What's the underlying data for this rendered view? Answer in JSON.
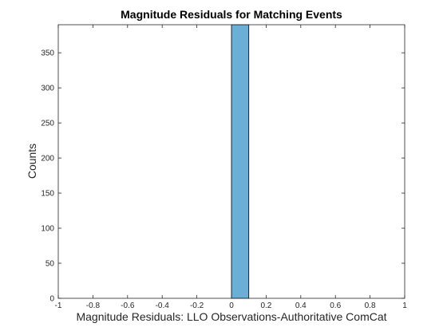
{
  "chart_data": {
    "type": "bar",
    "title": "Magnitude Residuals for Matching Events",
    "xlabel": "Magnitude Residuals: LLO Observations-Authoritative ComCat",
    "ylabel": "Counts",
    "xlim": [
      -1,
      1
    ],
    "ylim": [
      0,
      390
    ],
    "xticks": [
      -1,
      -0.8,
      -0.6,
      -0.4,
      -0.2,
      0,
      0.2,
      0.4,
      0.6,
      0.8,
      1
    ],
    "xtick_labels": [
      "-1",
      "-0.8",
      "-0.6",
      "-0.4",
      "-0.2",
      "0",
      "0.2",
      "0.4",
      "0.6",
      "0.8",
      "1"
    ],
    "yticks": [
      0,
      50,
      100,
      150,
      200,
      250,
      300,
      350
    ],
    "ytick_labels": [
      "0",
      "50",
      "100",
      "150",
      "200",
      "250",
      "300",
      "350"
    ],
    "grid": false,
    "bins": [
      {
        "x0": 0.0,
        "x1": 0.1,
        "count": 390
      }
    ],
    "bar_color": "#6baed6",
    "edge_color": "#000000"
  }
}
